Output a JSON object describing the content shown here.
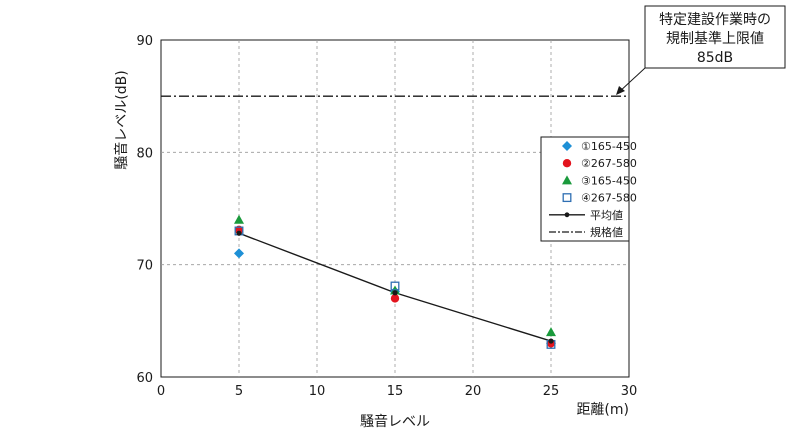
{
  "chart_data": {
    "type": "scatter",
    "title": "",
    "xlabel": "騒音レベル",
    "xunit_label": "距離(m)",
    "ylabel": "騒音レベル(dB)",
    "xlim": [
      0,
      30
    ],
    "ylim": [
      60,
      90
    ],
    "xticks": [
      "0",
      "5",
      "10",
      "15",
      "20",
      "25",
      "30"
    ],
    "yticks": [
      "60",
      "70",
      "80",
      "90"
    ],
    "grid": true,
    "legend_position": "right",
    "series": [
      {
        "name": "①165-450",
        "marker": "diamond",
        "color": "#1e90d6",
        "points": [
          {
            "x": 5,
            "y": 71.0
          },
          {
            "x": 15,
            "y": 67.6
          },
          {
            "x": 25,
            "y": 63.0
          }
        ]
      },
      {
        "name": "②267-580",
        "marker": "circle",
        "color": "#e3141e",
        "points": [
          {
            "x": 5,
            "y": 73.1
          },
          {
            "x": 15,
            "y": 67.0
          },
          {
            "x": 25,
            "y": 63.0
          }
        ]
      },
      {
        "name": "③165-450",
        "marker": "triangle",
        "color": "#1a9a3c",
        "points": [
          {
            "x": 5,
            "y": 74.0
          },
          {
            "x": 15,
            "y": 67.7
          },
          {
            "x": 25,
            "y": 64.0
          }
        ]
      },
      {
        "name": "④267-580",
        "marker": "square-open",
        "color": "#2f6fb3",
        "points": [
          {
            "x": 5,
            "y": 73.0
          },
          {
            "x": 15,
            "y": 68.1
          },
          {
            "x": 25,
            "y": 62.9
          }
        ]
      },
      {
        "name": "平均値",
        "marker": "line-dot",
        "color": "#1a1a1a",
        "points": [
          {
            "x": 5,
            "y": 72.8
          },
          {
            "x": 15,
            "y": 67.5
          },
          {
            "x": 25,
            "y": 63.2
          }
        ]
      }
    ],
    "reference_line": {
      "name": "規格値",
      "y": 85,
      "style": "dash-dot",
      "color": "#1a1a1a"
    },
    "annotation": {
      "lines": [
        "特定建設作業時の",
        "規制基準上限値",
        "85dB"
      ]
    }
  }
}
